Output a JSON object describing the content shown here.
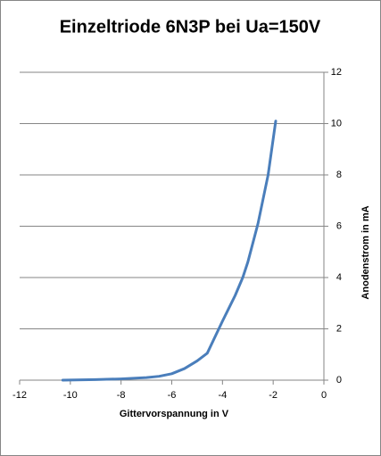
{
  "chart_data": {
    "type": "line",
    "title": "Einzeltriode 6N3P bei Ua=150V",
    "x_label": "Gittervorspannung  in V",
    "y_label": "Anodenstrom in mA",
    "x": [
      -10.3,
      -9,
      -8,
      -7,
      -6.5,
      -6,
      -5.5,
      -5,
      -4.6,
      -4,
      -3.5,
      -3.2,
      -3,
      -2.6,
      -2.2,
      -1.9
    ],
    "series": [
      {
        "name": "Anodenstrom",
        "color": "#4a7ebb",
        "values": [
          0,
          0.02,
          0.05,
          0.1,
          0.15,
          0.25,
          0.45,
          0.75,
          1.05,
          2.3,
          3.3,
          4.0,
          4.6,
          6.1,
          8.0,
          10.1
        ]
      }
    ],
    "xlim": [
      -12,
      0
    ],
    "xticks": [
      -12,
      -10,
      -8,
      -6,
      -4,
      -2,
      0
    ],
    "ylim": [
      0,
      12
    ],
    "yticks": [
      0,
      2,
      4,
      6,
      8,
      10,
      12
    ],
    "grid": true
  }
}
